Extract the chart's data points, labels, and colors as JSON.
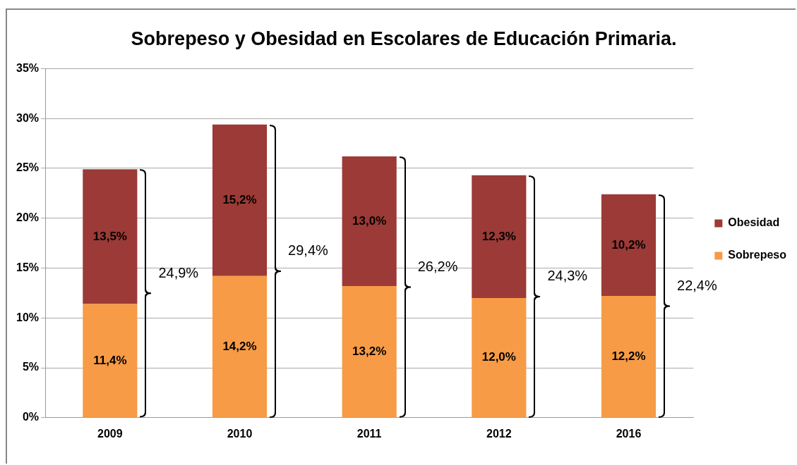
{
  "chart_data": {
    "type": "bar",
    "stacked": true,
    "title": "Sobrepeso y Obesidad en Escolares de Educación Primaria.",
    "categories": [
      "2009",
      "2010",
      "2011",
      "2012",
      "2016"
    ],
    "series": [
      {
        "name": "Sobrepeso",
        "color": "#f79b46",
        "values": [
          11.4,
          14.2,
          13.2,
          12.0,
          12.2
        ],
        "value_labels": [
          "11,4%",
          "14,2%",
          "13,2%",
          "12,0%",
          "12,2%"
        ]
      },
      {
        "name": "Obesidad",
        "color": "#9b3a36",
        "values": [
          13.5,
          15.2,
          13.0,
          12.3,
          10.2
        ],
        "value_labels": [
          "13,5%",
          "15,2%",
          "13,0%",
          "12,3%",
          "10,2%"
        ]
      }
    ],
    "totals": [
      "24,9%",
      "29,4%",
      "26,2%",
      "24,3%",
      "22,4%"
    ],
    "ylim": [
      0,
      35
    ],
    "yticks": [
      {
        "value": 0,
        "label": "0%"
      },
      {
        "value": 5,
        "label": "5%"
      },
      {
        "value": 10,
        "label": "10%"
      },
      {
        "value": 15,
        "label": "15%"
      },
      {
        "value": 20,
        "label": "20%"
      },
      {
        "value": 25,
        "label": "25%"
      },
      {
        "value": 30,
        "label": "30%"
      },
      {
        "value": 35,
        "label": "35%"
      }
    ],
    "grid": "y",
    "legend": "right"
  }
}
